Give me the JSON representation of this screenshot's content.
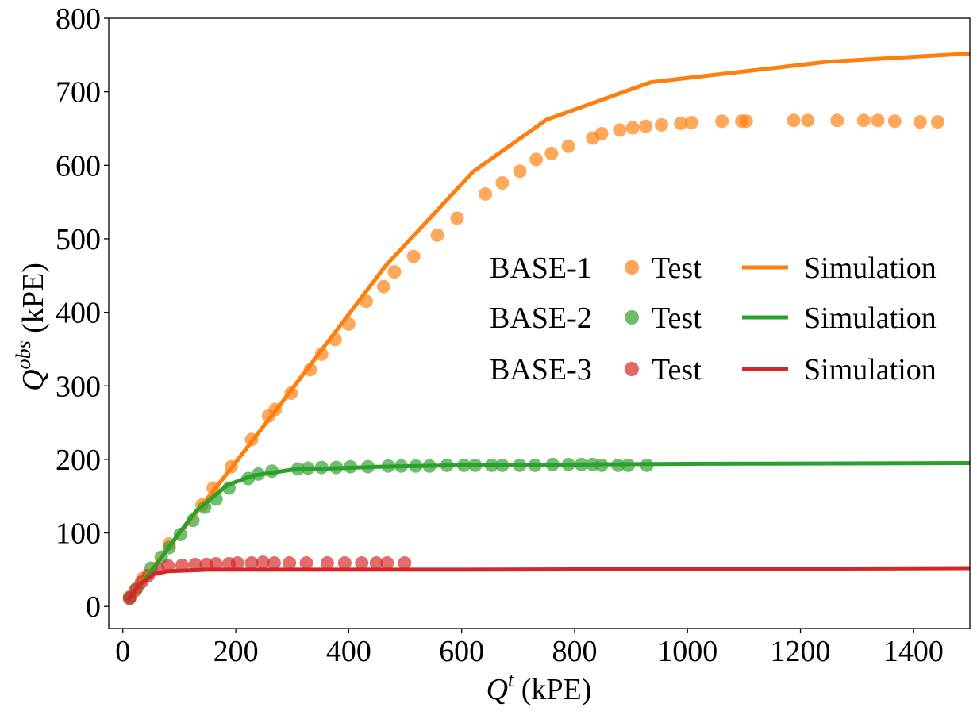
{
  "chart_data": {
    "type": "scatter",
    "title": "",
    "xlabel_main": "Q",
    "xlabel_sup": "t",
    "xlabel_unit": " (kPE)",
    "ylabel_main": "Q",
    "ylabel_sup": "obs",
    "ylabel_unit": " (kPE)",
    "xlim": [
      -25,
      1500
    ],
    "ylim": [
      -30,
      800
    ],
    "xticks": [
      0,
      200,
      400,
      600,
      800,
      1000,
      1200,
      1400
    ],
    "yticks": [
      0,
      100,
      200,
      300,
      400,
      500,
      600,
      700,
      800
    ],
    "grid": false,
    "legend_position": "center-right",
    "series": [
      {
        "name": "BASE-1",
        "color": "#ff7f0e",
        "test_label": "Test",
        "sim_label": "Simulation",
        "test": [
          [
            12,
            13
          ],
          [
            35,
            38
          ],
          [
            82,
            85
          ],
          [
            140,
            138
          ],
          [
            160,
            161
          ],
          [
            192,
            190
          ],
          [
            228,
            227
          ],
          [
            258,
            259
          ],
          [
            270,
            268
          ],
          [
            298,
            290
          ],
          [
            332,
            322
          ],
          [
            352,
            343
          ],
          [
            376,
            363
          ],
          [
            400,
            384
          ],
          [
            431,
            415
          ],
          [
            462,
            435
          ],
          [
            481,
            455
          ],
          [
            515,
            476
          ],
          [
            557,
            505
          ],
          [
            592,
            528
          ],
          [
            642,
            561
          ],
          [
            672,
            576
          ],
          [
            703,
            592
          ],
          [
            732,
            608
          ],
          [
            759,
            616
          ],
          [
            789,
            626
          ],
          [
            832,
            637
          ],
          [
            848,
            643
          ],
          [
            880,
            648
          ],
          [
            903,
            651
          ],
          [
            926,
            653
          ],
          [
            954,
            655
          ],
          [
            988,
            657
          ],
          [
            1007,
            658
          ],
          [
            1061,
            660
          ],
          [
            1096,
            660
          ],
          [
            1104,
            660
          ],
          [
            1188,
            661
          ],
          [
            1213,
            661
          ],
          [
            1265,
            661
          ],
          [
            1312,
            661
          ],
          [
            1337,
            661
          ],
          [
            1367,
            660
          ],
          [
            1412,
            659
          ],
          [
            1443,
            659
          ]
        ],
        "sim": [
          [
            8,
            8
          ],
          [
            60,
            60
          ],
          [
            120,
            118
          ],
          [
            200,
            196
          ],
          [
            300,
            296
          ],
          [
            465,
            463
          ],
          [
            620,
            591
          ],
          [
            750,
            662
          ],
          [
            935,
            713
          ],
          [
            1250,
            741
          ],
          [
            1500,
            752
          ]
        ]
      },
      {
        "name": "BASE-2",
        "color": "#2ca02c",
        "test_label": "Test",
        "sim_label": "Simulation",
        "test": [
          [
            12,
            12
          ],
          [
            25,
            25
          ],
          [
            50,
            52
          ],
          [
            68,
            67
          ],
          [
            82,
            80
          ],
          [
            102,
            98
          ],
          [
            124,
            117
          ],
          [
            145,
            135
          ],
          [
            165,
            146
          ],
          [
            188,
            161
          ],
          [
            222,
            174
          ],
          [
            240,
            180
          ],
          [
            264,
            184
          ],
          [
            310,
            187
          ],
          [
            328,
            188
          ],
          [
            352,
            189
          ],
          [
            378,
            189
          ],
          [
            403,
            190
          ],
          [
            434,
            190
          ],
          [
            470,
            191
          ],
          [
            493,
            191
          ],
          [
            519,
            191
          ],
          [
            543,
            191
          ],
          [
            574,
            192
          ],
          [
            604,
            192
          ],
          [
            624,
            192
          ],
          [
            653,
            192
          ],
          [
            672,
            192
          ],
          [
            703,
            192
          ],
          [
            730,
            192
          ],
          [
            761,
            193
          ],
          [
            789,
            193
          ],
          [
            812,
            193
          ],
          [
            832,
            193
          ],
          [
            848,
            192
          ],
          [
            877,
            192
          ],
          [
            895,
            192
          ],
          [
            928,
            192
          ]
        ],
        "sim": [
          [
            8,
            8
          ],
          [
            60,
            58
          ],
          [
            100,
            100
          ],
          [
            130,
            130
          ],
          [
            185,
            165
          ],
          [
            230,
            178
          ],
          [
            300,
            186
          ],
          [
            450,
            190
          ],
          [
            600,
            192
          ],
          [
            800,
            193
          ],
          [
            1000,
            194
          ],
          [
            1500,
            195
          ]
        ]
      },
      {
        "name": "BASE-3",
        "color": "#d62728",
        "test_label": "Test",
        "sim_label": "Simulation",
        "test": [
          [
            12,
            11
          ],
          [
            22,
            22
          ],
          [
            33,
            33
          ],
          [
            45,
            42
          ],
          [
            62,
            51
          ],
          [
            80,
            55
          ],
          [
            105,
            56
          ],
          [
            128,
            57
          ],
          [
            148,
            57
          ],
          [
            165,
            58
          ],
          [
            188,
            58
          ],
          [
            203,
            59
          ],
          [
            228,
            59
          ],
          [
            248,
            60
          ],
          [
            268,
            59
          ],
          [
            295,
            59
          ],
          [
            325,
            59
          ],
          [
            362,
            59
          ],
          [
            393,
            59
          ],
          [
            423,
            59
          ],
          [
            449,
            59
          ],
          [
            468,
            59
          ],
          [
            499,
            59
          ]
        ],
        "sim": [
          [
            8,
            8
          ],
          [
            30,
            30
          ],
          [
            55,
            44
          ],
          [
            80,
            48
          ],
          [
            150,
            50
          ],
          [
            300,
            50
          ],
          [
            600,
            50
          ],
          [
            1000,
            51
          ],
          [
            1500,
            52
          ]
        ]
      }
    ]
  }
}
